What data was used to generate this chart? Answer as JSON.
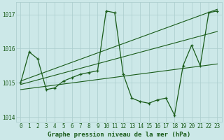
{
  "title": "Graphe pression niveau de la mer (hPa)",
  "hours": [
    0,
    1,
    2,
    3,
    4,
    5,
    6,
    7,
    8,
    9,
    10,
    11,
    12,
    13,
    14,
    15,
    16,
    17,
    18,
    19,
    20,
    21,
    22,
    23
  ],
  "pressure": [
    1015.0,
    1015.9,
    1015.7,
    1014.8,
    1014.85,
    1015.05,
    1015.15,
    1015.25,
    1015.3,
    1015.35,
    1017.1,
    1017.05,
    1015.25,
    1014.55,
    1014.45,
    1014.4,
    1014.5,
    1014.55,
    1014.05,
    1015.5,
    1016.1,
    1015.5,
    1017.05,
    1017.1
  ],
  "trend1_x": [
    0,
    23
  ],
  "trend1_y": [
    1014.8,
    1015.55
  ],
  "trend2_x": [
    0,
    23
  ],
  "trend2_y": [
    1014.95,
    1016.5
  ],
  "trend3_x": [
    0,
    23
  ],
  "trend3_y": [
    1015.05,
    1017.15
  ],
  "ylim": [
    1013.85,
    1017.35
  ],
  "yticks": [
    1014,
    1015,
    1016,
    1017
  ],
  "xlim": [
    -0.5,
    23.5
  ],
  "bg_color": "#cce8e8",
  "grid_color": "#aacccc",
  "line_color": "#1a5c1a",
  "text_color": "#1a5c1a",
  "title_fontsize": 6.5,
  "tick_fontsize": 5.5,
  "figsize": [
    3.2,
    2.0
  ],
  "dpi": 100
}
